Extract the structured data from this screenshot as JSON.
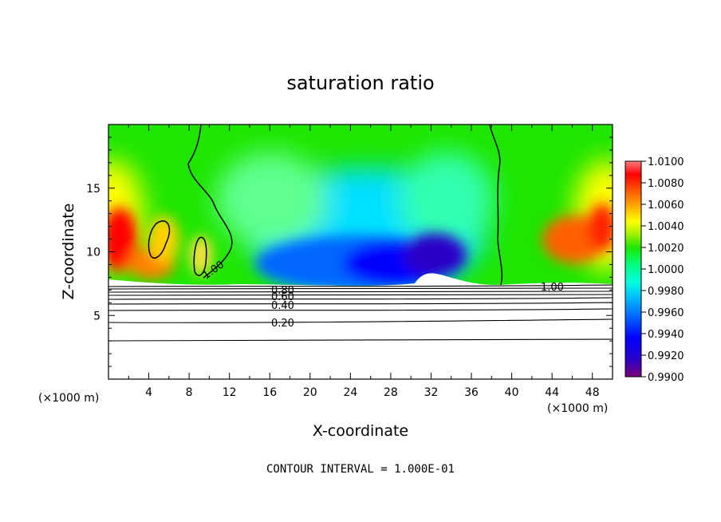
{
  "chart_data": {
    "type": "heatmap",
    "title": "saturation ratio",
    "xlabel": "X-coordinate",
    "ylabel": "Z-coordinate",
    "x_unit_left": "(×1000 m)",
    "x_unit_right": "(×1000 m)",
    "footer": "CONTOUR INTERVAL = 1.000E-01",
    "xlim": [
      0,
      50
    ],
    "ylim": [
      0,
      20
    ],
    "x_ticks": [
      4,
      8,
      12,
      16,
      20,
      24,
      28,
      32,
      36,
      40,
      44,
      48
    ],
    "y_ticks": [
      5,
      10,
      15
    ],
    "colorbar": {
      "min": 0.99,
      "max": 1.01,
      "labels": [
        "1.0100",
        "1.0080",
        "1.0060",
        "1.0040",
        "1.0020",
        "1.0000",
        "0.9980",
        "0.9960",
        "0.9940",
        "0.9920",
        "0.9900"
      ]
    },
    "filled_domain_z": [
      7.3,
      20
    ],
    "contour_levels": [
      {
        "level": "0.20",
        "z": 4.5
      },
      {
        "level": "0.40",
        "z": 5.6
      },
      {
        "level": "0.60",
        "z": 6.2
      },
      {
        "level": "0.80",
        "z": 6.6
      },
      {
        "level": "1.00",
        "z": 7.1
      }
    ],
    "inline_labels": [
      "0.20",
      "0.40",
      "0.60",
      "0.80",
      "1.00",
      "1.00"
    ]
  },
  "colors": {
    "scale": [
      "#7a007a",
      "#2a00c8",
      "#0000ff",
      "#0066ff",
      "#00b4ff",
      "#00ffdc",
      "#00ff80",
      "#1ee600",
      "#a0f000",
      "#ffff00",
      "#ffa000",
      "#ff5000",
      "#ff0000",
      "#ff8080"
    ]
  }
}
